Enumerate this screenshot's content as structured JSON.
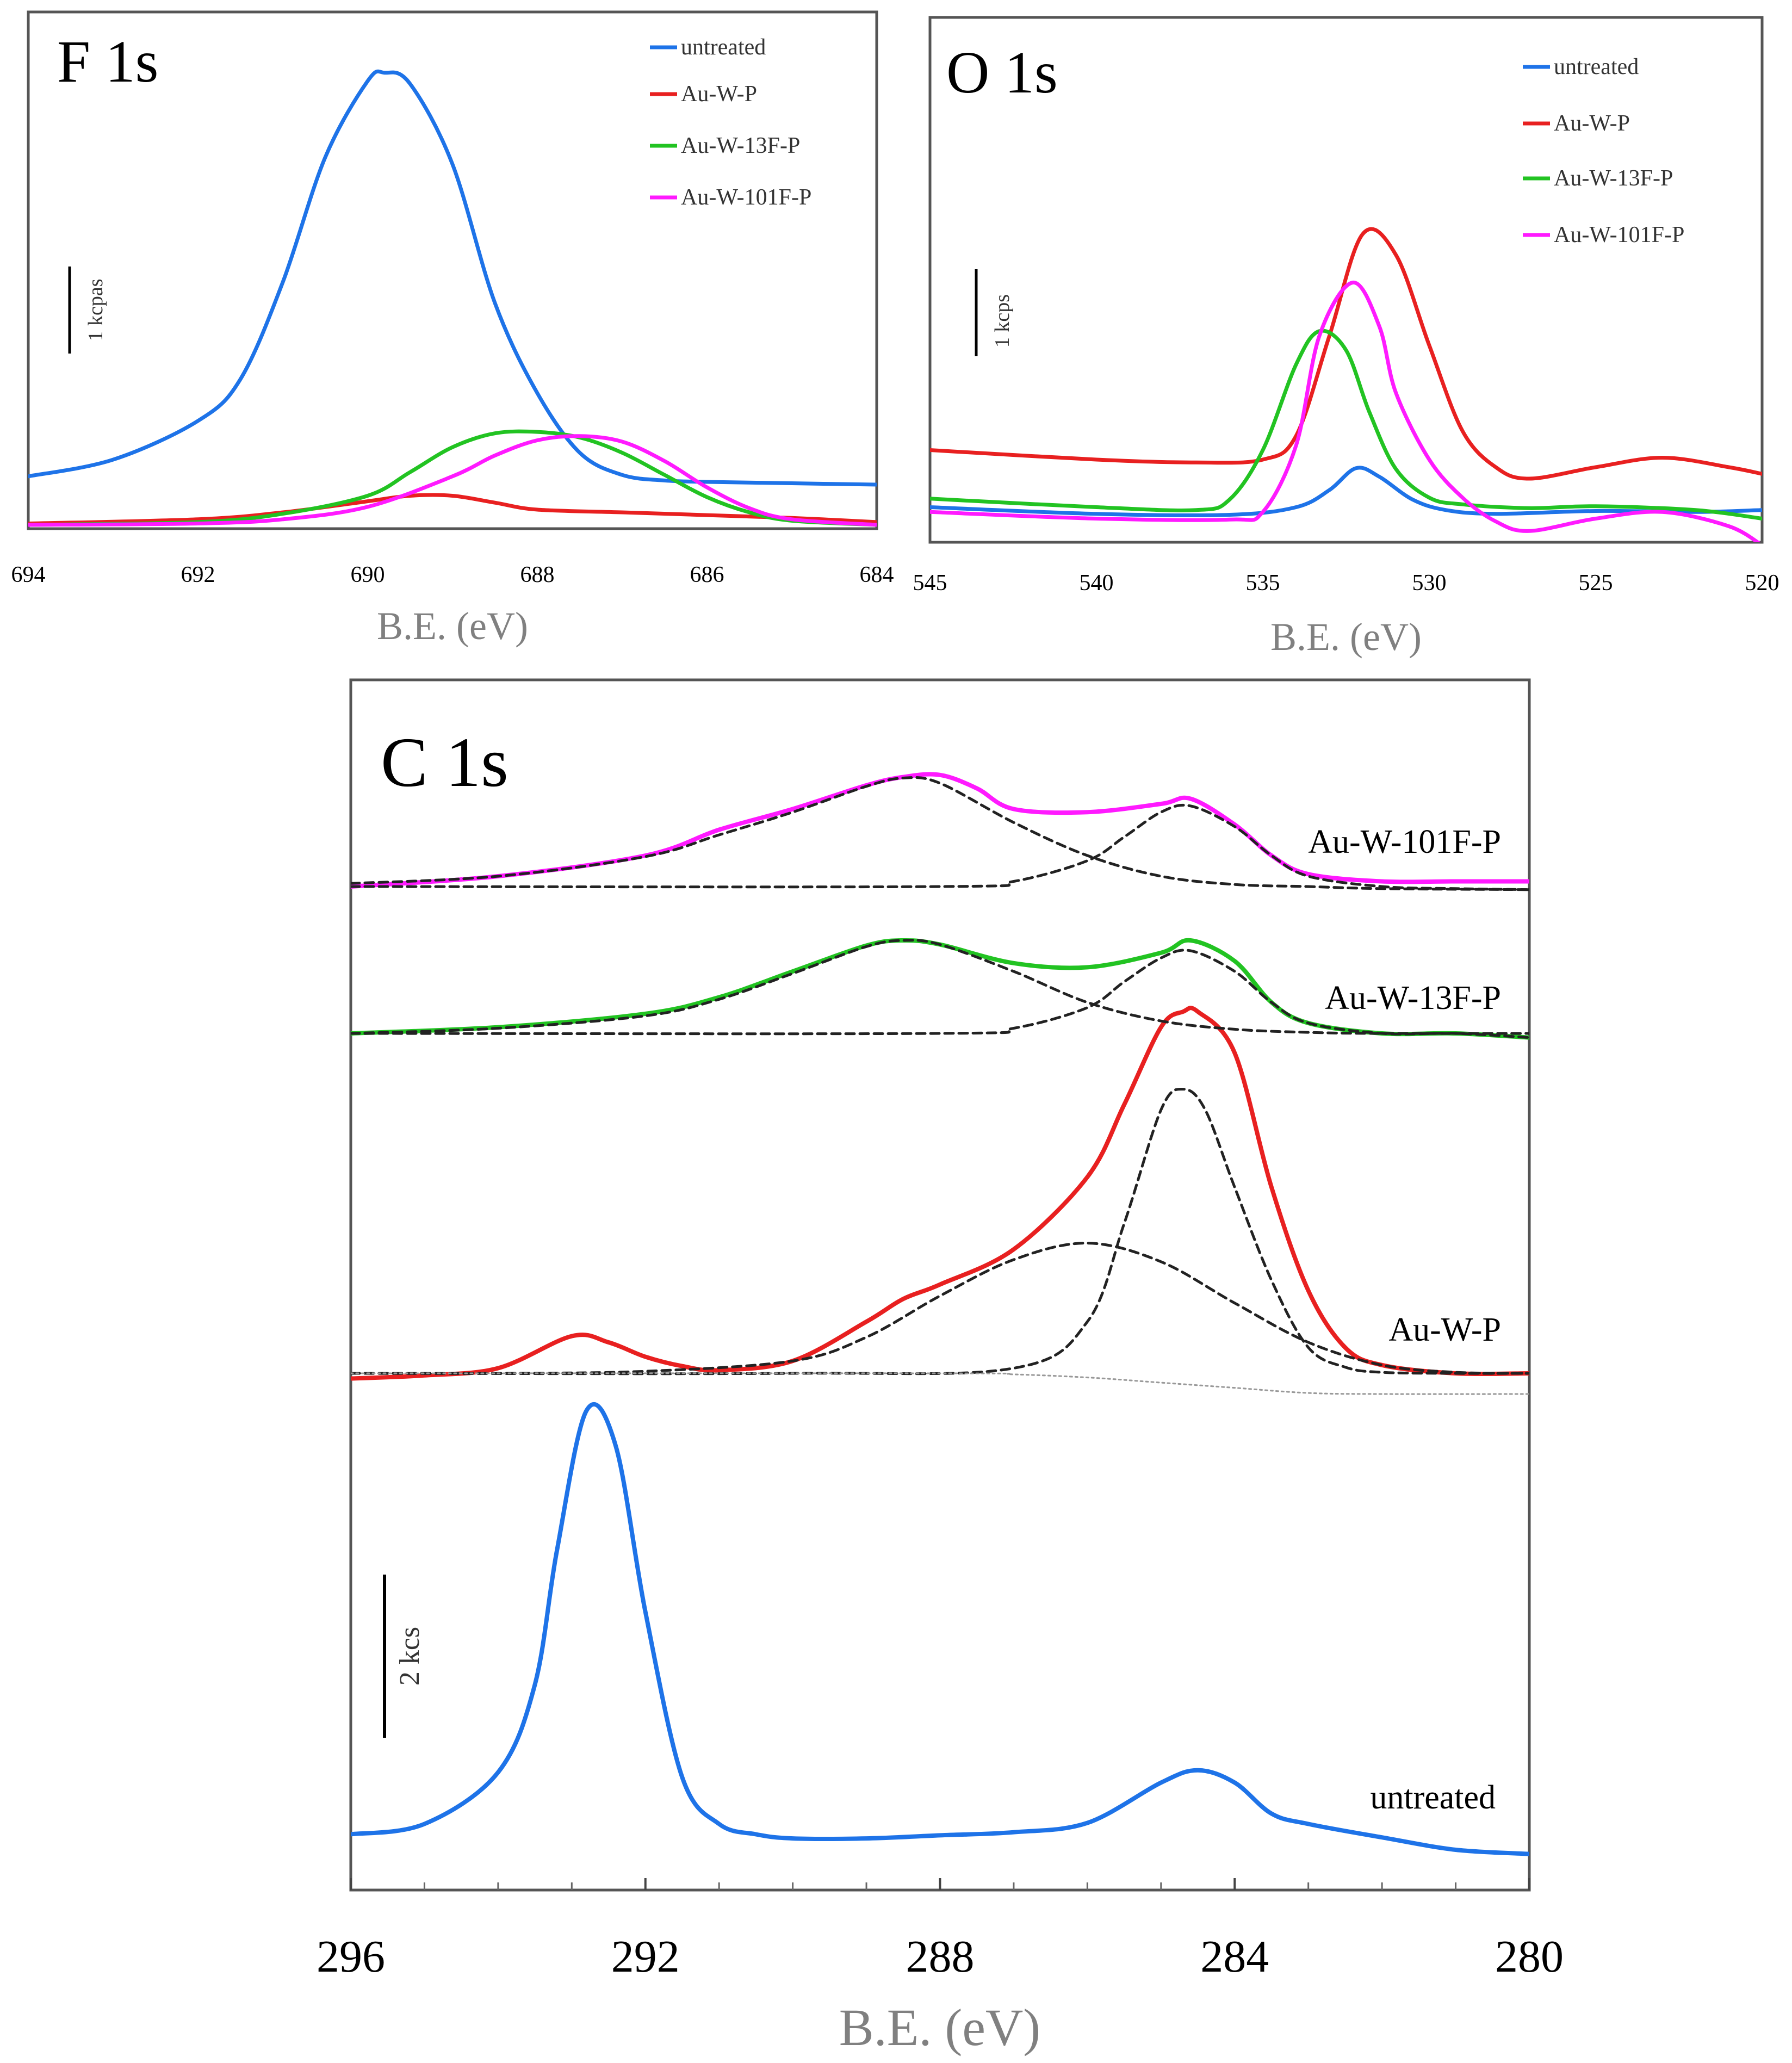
{
  "chart_data": [
    {
      "type": "line",
      "title": "F 1s",
      "xlabel": "B.E. (eV)",
      "ylabel": "",
      "xlim": [
        694,
        684
      ],
      "x_ticks": [
        "694",
        "692",
        "690",
        "688",
        "686",
        "684"
      ],
      "scale_bar": "1 kcpas",
      "legend_position": "top-right",
      "series": [
        {
          "name": "untreated",
          "color": "#1e73e8",
          "x": [
            694,
            693,
            692,
            691.5,
            691,
            690.5,
            690,
            689.8,
            689.5,
            689,
            688.5,
            688,
            687.5,
            687,
            686.5,
            686,
            685,
            684
          ],
          "y": [
            0.35,
            0.47,
            0.75,
            1.05,
            1.75,
            2.65,
            3.2,
            3.26,
            3.18,
            2.6,
            1.6,
            0.95,
            0.52,
            0.36,
            0.32,
            0.31,
            0.3,
            0.29
          ]
        },
        {
          "name": "Au-W-P",
          "color": "#e82020",
          "x": [
            694,
            692,
            691,
            690,
            689.5,
            689,
            688.5,
            688,
            687,
            686,
            685,
            684
          ],
          "y": [
            0.01,
            0.04,
            0.09,
            0.17,
            0.21,
            0.21,
            0.16,
            0.11,
            0.09,
            0.07,
            0.05,
            0.02
          ]
        },
        {
          "name": "Au-W-13F-P",
          "color": "#22c322",
          "x": [
            694,
            692,
            691,
            690,
            689.5,
            689,
            688.5,
            688,
            687.5,
            687,
            686.5,
            686,
            685.5,
            685,
            684
          ],
          "y": [
            0.0,
            0.02,
            0.08,
            0.21,
            0.38,
            0.56,
            0.66,
            0.67,
            0.63,
            0.52,
            0.36,
            0.2,
            0.09,
            0.03,
            0.0
          ]
        },
        {
          "name": "Au-W-101F-P",
          "color": "#ff1aff",
          "x": [
            694,
            692,
            691,
            690,
            689,
            688.5,
            688,
            687.5,
            687,
            686.5,
            686,
            685.5,
            685,
            684
          ],
          "y": [
            0.0,
            0.01,
            0.04,
            0.13,
            0.35,
            0.5,
            0.61,
            0.64,
            0.6,
            0.46,
            0.27,
            0.12,
            0.04,
            0.0
          ]
        }
      ]
    },
    {
      "type": "line",
      "title": "O 1s",
      "xlabel": "B.E. (eV)",
      "ylabel": "",
      "xlim": [
        545,
        520
      ],
      "x_ticks": [
        "545",
        "540",
        "535",
        "530",
        "525",
        "520"
      ],
      "scale_bar": "1 kcps",
      "legend_position": "top-right",
      "series": [
        {
          "name": "untreated",
          "color": "#1e73e8",
          "x": [
            545,
            540,
            536,
            534,
            533,
            532.2,
            531.5,
            530.5,
            529.5,
            528,
            525,
            522,
            520
          ],
          "y": [
            0.3,
            0.23,
            0.22,
            0.3,
            0.48,
            0.71,
            0.62,
            0.38,
            0.27,
            0.23,
            0.26,
            0.25,
            0.27
          ]
        },
        {
          "name": "Au-W-P",
          "color": "#e82020",
          "x": [
            545,
            540,
            537,
            535,
            534,
            533,
            532,
            531,
            530,
            529,
            528,
            527,
            525,
            523,
            521,
            520
          ],
          "y": [
            0.9,
            0.8,
            0.77,
            0.8,
            1.05,
            2.1,
            3.17,
            2.95,
            2.0,
            1.1,
            0.72,
            0.6,
            0.72,
            0.82,
            0.72,
            0.65
          ]
        },
        {
          "name": "Au-W-13F-P",
          "color": "#22c322",
          "x": [
            545,
            540,
            537,
            536,
            535,
            534,
            533.3,
            532.5,
            531.8,
            531,
            530,
            529,
            527,
            525,
            522,
            520
          ],
          "y": [
            0.39,
            0.3,
            0.27,
            0.38,
            0.9,
            1.8,
            2.15,
            1.95,
            1.3,
            0.7,
            0.4,
            0.33,
            0.29,
            0.31,
            0.27,
            0.18
          ]
        },
        {
          "name": "Au-W-101F-P",
          "color": "#ff1aff",
          "x": [
            545,
            540,
            536,
            535,
            534,
            533.3,
            532.3,
            531.5,
            531,
            530,
            529,
            528,
            527,
            525,
            523,
            521,
            520
          ],
          "y": [
            0.25,
            0.18,
            0.17,
            0.25,
            0.95,
            2.1,
            2.66,
            2.2,
            1.5,
            0.8,
            0.4,
            0.15,
            0.05,
            0.18,
            0.25,
            0.1,
            -0.1
          ]
        }
      ]
    },
    {
      "type": "line",
      "title": "C 1s",
      "xlabel": "B.E. (eV)",
      "ylabel": "",
      "xlim": [
        296,
        280
      ],
      "x_ticks": [
        "296",
        "292",
        "288",
        "284",
        "280"
      ],
      "scale_bar": "2 kcs",
      "labels": [
        "Au-W-101F-P",
        "Au-W-13F-P",
        "Au-W-P",
        "untreated"
      ],
      "series": [
        {
          "name": "untreated",
          "color": "#1e73e8",
          "x": [
            296,
            295,
            294,
            293.5,
            293.2,
            292.8,
            292.4,
            292,
            291.5,
            291,
            290.5,
            290,
            289,
            288,
            287,
            286,
            285,
            284.5,
            284,
            283.5,
            283,
            282,
            281,
            280
          ],
          "y": [
            0.25,
            0.35,
            0.85,
            1.7,
            3.0,
            4.35,
            4.0,
            2.4,
            0.8,
            0.35,
            0.25,
            0.21,
            0.21,
            0.24,
            0.27,
            0.36,
            0.75,
            0.87,
            0.75,
            0.45,
            0.35,
            0.22,
            0.1,
            0.06
          ]
        },
        {
          "name": "Au-W-P",
          "color": "#e82020",
          "x": [
            296,
            295,
            294,
            293,
            292.5,
            292,
            291.5,
            291,
            290,
            289,
            288.5,
            288,
            287,
            286,
            285.5,
            285,
            284.7,
            284.5,
            284,
            283.5,
            283,
            282.5,
            282,
            281,
            280
          ],
          "y": [
            -0.05,
            -0.02,
            0.05,
            0.36,
            0.3,
            0.16,
            0.07,
            0.03,
            0.12,
            0.5,
            0.72,
            0.86,
            1.2,
            1.9,
            2.6,
            3.35,
            3.5,
            3.5,
            3.1,
            1.8,
            0.8,
            0.25,
            0.08,
            0.0,
            0.0
          ]
        },
        {
          "name": "Au-W-P fit (broad)",
          "color": "#222222",
          "dashed": true,
          "x": [
            296,
            294,
            292,
            290,
            289,
            288,
            287,
            286,
            285,
            284,
            283,
            282,
            281,
            280
          ],
          "y": [
            0.0,
            0.0,
            0.02,
            0.12,
            0.35,
            0.75,
            1.1,
            1.26,
            1.08,
            0.68,
            0.3,
            0.08,
            0.01,
            0.0
          ]
        },
        {
          "name": "Au-W-P fit (sharp)",
          "color": "#222222",
          "dashed": true,
          "x": [
            296,
            290,
            287,
            286,
            285.5,
            285,
            284.7,
            284.4,
            284,
            283.5,
            283,
            282.5,
            282,
            281,
            280
          ],
          "y": [
            0.0,
            0.0,
            0.05,
            0.5,
            1.45,
            2.55,
            2.75,
            2.55,
            1.8,
            0.9,
            0.25,
            0.06,
            0.01,
            0.0,
            0.0
          ]
        },
        {
          "name": "Au-W-P background",
          "color": "#999999",
          "dotted": true,
          "x": [
            296,
            288,
            287,
            286,
            285,
            284,
            283,
            282,
            280
          ],
          "y": [
            0.0,
            0.0,
            -0.01,
            -0.04,
            -0.09,
            -0.14,
            -0.19,
            -0.2,
            -0.2
          ]
        },
        {
          "name": "Au-W-13F-P",
          "color": "#22c322",
          "x": [
            296,
            294,
            292,
            291,
            290,
            289,
            288.5,
            288,
            287,
            286,
            285,
            284.6,
            284,
            283.5,
            283,
            282,
            281,
            280
          ],
          "y": [
            0.0,
            0.06,
            0.19,
            0.35,
            0.6,
            0.85,
            0.9,
            0.86,
            0.68,
            0.64,
            0.78,
            0.9,
            0.7,
            0.3,
            0.1,
            0.0,
            0.0,
            -0.04
          ]
        },
        {
          "name": "Au-W-13F-P fit 1",
          "color": "#222222",
          "dashed": true,
          "x": [
            296,
            294,
            292,
            291,
            290,
            289,
            288.5,
            288,
            287,
            286,
            285,
            284,
            283,
            282,
            280
          ],
          "y": [
            0.0,
            0.05,
            0.17,
            0.33,
            0.58,
            0.84,
            0.9,
            0.86,
            0.6,
            0.3,
            0.12,
            0.04,
            0.01,
            0.0,
            0.0
          ]
        },
        {
          "name": "Au-W-13F-P fit 2",
          "color": "#222222",
          "dashed": true,
          "x": [
            296,
            288,
            287,
            286,
            285.5,
            285,
            284.6,
            284,
            283.5,
            283,
            282,
            281,
            280
          ],
          "y": [
            0.0,
            0.0,
            0.05,
            0.25,
            0.5,
            0.73,
            0.8,
            0.6,
            0.3,
            0.1,
            0.0,
            0.0,
            -0.04
          ]
        },
        {
          "name": "Au-W-101F-P",
          "color": "#ff1aff",
          "x": [
            296,
            294,
            292,
            291,
            290,
            289,
            288.5,
            288,
            287.5,
            287,
            286,
            285,
            284.6,
            284,
            283.5,
            283,
            282,
            281,
            280
          ],
          "y": [
            0.0,
            0.1,
            0.3,
            0.55,
            0.75,
            0.98,
            1.06,
            1.08,
            0.95,
            0.75,
            0.72,
            0.8,
            0.85,
            0.6,
            0.3,
            0.12,
            0.05,
            0.05,
            0.05
          ]
        },
        {
          "name": "Au-W-101F-P fit 1",
          "color": "#222222",
          "dashed": true,
          "x": [
            296,
            294,
            292,
            291,
            290,
            289,
            288.5,
            288,
            287,
            286,
            285,
            284,
            283,
            282,
            280
          ],
          "y": [
            0.03,
            0.1,
            0.29,
            0.5,
            0.72,
            0.97,
            1.05,
            1.0,
            0.62,
            0.3,
            0.1,
            0.02,
            0.0,
            -0.02,
            -0.03
          ]
        },
        {
          "name": "Au-W-101F-P fit 2",
          "color": "#222222",
          "dashed": true,
          "x": [
            296,
            288,
            287,
            286,
            285.5,
            285,
            284.6,
            284,
            283.5,
            283,
            282,
            281,
            280
          ],
          "y": [
            0.0,
            0.0,
            0.05,
            0.25,
            0.48,
            0.72,
            0.78,
            0.58,
            0.3,
            0.1,
            0.0,
            -0.02,
            -0.03
          ]
        }
      ]
    }
  ]
}
